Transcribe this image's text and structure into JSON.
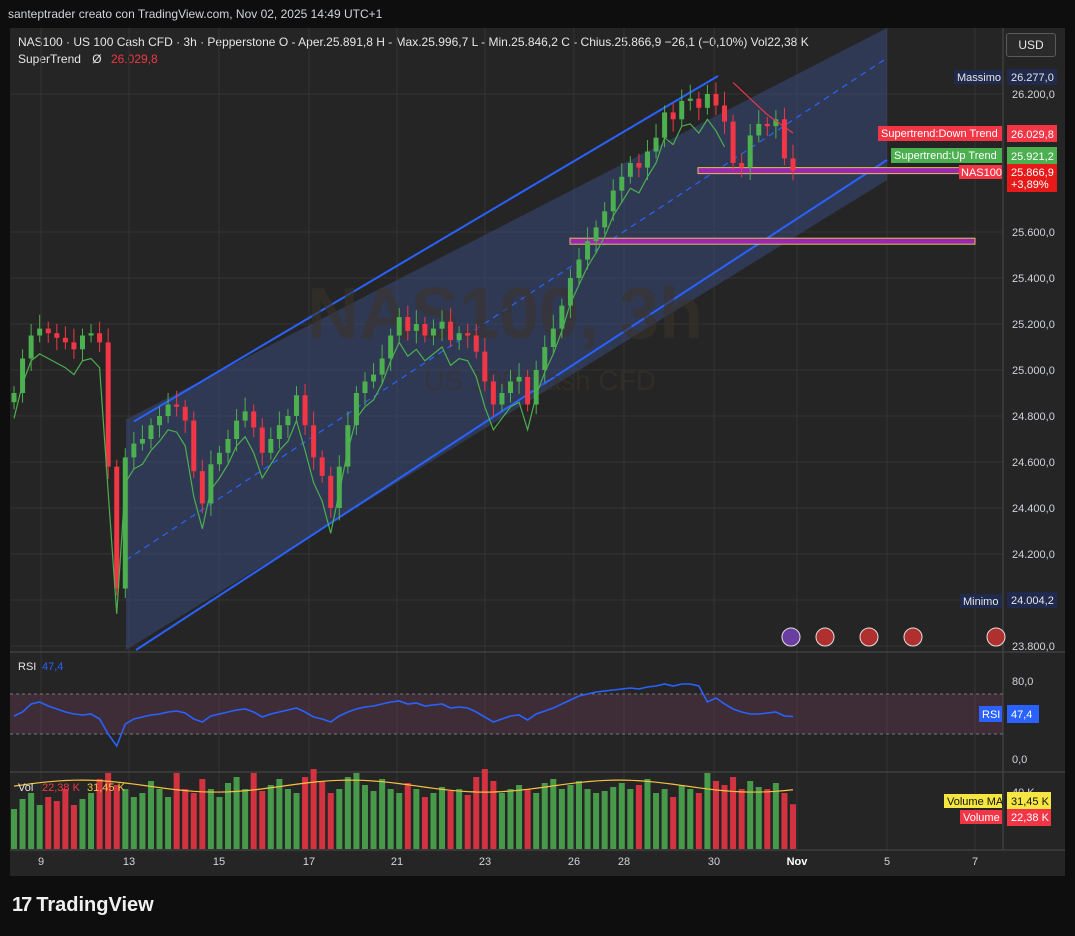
{
  "attribution": "santeptrader creato con TradingView.com, Nov 02, 2025 14:49 UTC+1",
  "header": {
    "symbol_line": "NAS100 · US 100 Cash CFD · 3h · Pepperstone",
    "ohlc_line": "O - Aper.25.891,8  H - Max.25.996,7  L - Min.25.846,2  C - Chius.25.866,9  −26,1 (−0,10%)  Vol22,38 K",
    "indicator_name": "SuperTrend",
    "indicator_symbol": "Ø",
    "indicator_value": "26.029,8"
  },
  "currency": "USD",
  "watermark": {
    "line1": "NAS100, 3h",
    "line2": "US 100 Cash CFD"
  },
  "price_axis": {
    "labels": [
      "26.200,0",
      "25.600,0",
      "25.400,0",
      "25.200,0",
      "25.000,0",
      "24.800,0",
      "24.600,0",
      "24.400,0",
      "24.200,0",
      "23.800,0"
    ],
    "max_label": "Massimo",
    "max_value": "26.277,0",
    "min_label": "Minimo",
    "min_value": "24.004,2",
    "st_down_label": "Supertrend:Down Trend",
    "st_down_value": "26.029,8",
    "st_up_label": "Supertrend:Up Trend",
    "st_up_value": "25.921,2",
    "symbol_label": "NAS100",
    "last_price": "25.866,9",
    "last_change": "+3,89%"
  },
  "time_axis": [
    "9",
    "13",
    "15",
    "17",
    "21",
    "23",
    "26",
    "28",
    "30",
    "Nov",
    "5",
    "7"
  ],
  "rsi": {
    "label": "RSI",
    "value": "47,4",
    "axis": [
      "80,0",
      "0,0"
    ],
    "tag_label": "RSI",
    "tag_value": "47,4"
  },
  "volume": {
    "label": "Vol",
    "value": "22,38 K",
    "ma_value": "31,45 K",
    "axis": "40 K",
    "ma_tag_label": "Volume MA",
    "ma_tag_value": "31,45 K",
    "vol_tag_label": "Volume",
    "vol_tag_value": "22,38 K"
  },
  "colors": {
    "up": "#4caf50",
    "down": "#f23645",
    "channel": "#2962ff",
    "supertrend_up": "#4caf50",
    "supertrend_down": "#f23645",
    "zone": "#9c27b0",
    "rsi": "#2962ff",
    "vol_ma": "#f5c242"
  },
  "brand": "TradingView",
  "chart_data": {
    "type": "candlestick",
    "title": "NAS100 · US 100 Cash CFD · 3h",
    "session_ticks": [
      "9",
      "13",
      "15",
      "17",
      "21",
      "23",
      "26",
      "28",
      "30",
      "Nov",
      "5",
      "7"
    ],
    "closes": [
      24900,
      25050,
      25150,
      25180,
      25160,
      25140,
      25120,
      25090,
      25150,
      25160,
      25120,
      24580,
      24050,
      24620,
      24680,
      24700,
      24760,
      24800,
      24850,
      24840,
      24780,
      24560,
      24420,
      24590,
      24640,
      24700,
      24780,
      24820,
      24750,
      24640,
      24700,
      24760,
      24800,
      24890,
      24760,
      24620,
      24540,
      24400,
      24580,
      24760,
      24900,
      24950,
      24980,
      25050,
      25150,
      25230,
      25170,
      25200,
      25150,
      25180,
      25210,
      25130,
      25160,
      25150,
      25080,
      24950,
      24850,
      24900,
      24950,
      24970,
      24850,
      25000,
      25100,
      25180,
      25280,
      25400,
      25480,
      25560,
      25620,
      25690,
      25780,
      25840,
      25900,
      25880,
      25950,
      26010,
      26120,
      26090,
      26170,
      26180,
      26140,
      26200,
      26150,
      26080,
      25900,
      25880,
      26020,
      26070,
      26060,
      26090,
      25920,
      25866.9
    ],
    "ylim": [
      23800,
      26300
    ],
    "supertrend_value": 26029.8,
    "channel": {
      "upper_start": 24785,
      "upper_end": 26277,
      "lower_start": 23800,
      "lower_end": 25800
    },
    "zones": [
      25866.9,
      25560
    ],
    "max": 26277.0,
    "min": 24004.2,
    "rsi": [
      48,
      52,
      60,
      62,
      58,
      55,
      52,
      50,
      49,
      50,
      45,
      30,
      18,
      40,
      45,
      47,
      49,
      50,
      52,
      53,
      51,
      45,
      42,
      48,
      50,
      52,
      54,
      55,
      52,
      47,
      50,
      52,
      54,
      56,
      52,
      47,
      45,
      42,
      48,
      52,
      55,
      57,
      58,
      60,
      62,
      63,
      60,
      61,
      58,
      59,
      60,
      56,
      57,
      56,
      52,
      47,
      42,
      45,
      48,
      49,
      44,
      50,
      53,
      56,
      60,
      64,
      68,
      70,
      72,
      73,
      74,
      75,
      76,
      75,
      77,
      78,
      80,
      78,
      80,
      80,
      78,
      62,
      66,
      60,
      55,
      52,
      50,
      50,
      51,
      52,
      48,
      47.4
    ],
    "rsi_ylim": [
      0,
      100
    ],
    "volume": [
      20,
      25,
      28,
      22,
      26,
      24,
      30,
      22,
      25,
      28,
      35,
      38,
      32,
      30,
      26,
      28,
      34,
      30,
      26,
      38,
      30,
      28,
      35,
      30,
      26,
      33,
      36,
      30,
      38,
      29,
      32,
      35,
      30,
      28,
      36,
      40,
      34,
      28,
      30,
      36,
      38,
      32,
      29,
      35,
      30,
      28,
      33,
      30,
      26,
      28,
      31,
      29,
      30,
      27,
      36,
      40,
      34,
      28,
      30,
      32,
      30,
      28,
      33,
      35,
      30,
      32,
      34,
      30,
      28,
      29,
      31,
      33,
      30,
      32,
      35,
      28,
      30,
      26,
      32,
      30,
      28,
      38,
      34,
      32,
      36,
      30,
      34,
      31,
      30,
      33,
      28,
      22.38
    ],
    "volume_ma": 31.45
  }
}
